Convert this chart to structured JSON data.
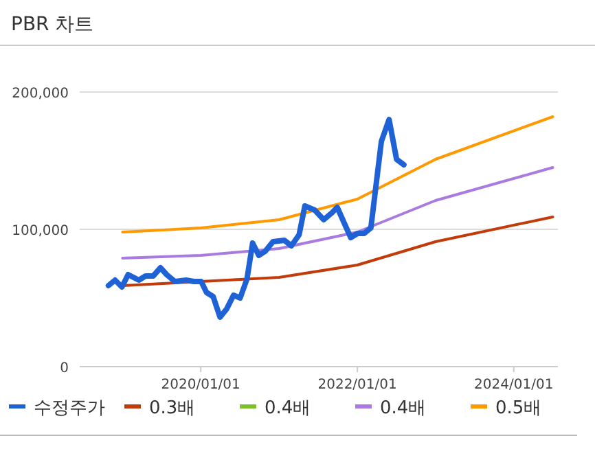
{
  "chart_data": {
    "type": "line",
    "title": "PBR 차트",
    "xlim": [
      "2018-06-15",
      "2024-07-25"
    ],
    "xticks": [
      {
        "value": "2020-01-01",
        "label": "2020/01/01"
      },
      {
        "value": "2022-01-01",
        "label": "2022/01/01"
      },
      {
        "value": "2024-01-01",
        "label": "2024/01/01"
      }
    ],
    "ylim": [
      0,
      200000
    ],
    "yticks": [
      {
        "value": 0,
        "label": "0"
      },
      {
        "value": 100000,
        "label": "100,000"
      },
      {
        "value": 200000,
        "label": "200,000"
      }
    ],
    "grid": "y",
    "legend": "bottom",
    "marker": "none",
    "line_style": "solid",
    "series": [
      {
        "name": "수정주가",
        "color": "#1f62d6",
        "x": [
          "2018-10-27",
          "2018-11-27",
          "2018-12-29",
          "2019-01-27",
          "2019-03-18",
          "2019-04-18",
          "2019-05-24",
          "2019-06-27",
          "2019-07-26",
          "2019-09-02",
          "2019-10-25",
          "2019-11-30",
          "2020-01-03",
          "2020-01-28",
          "2020-02-28",
          "2020-03-31",
          "2020-05-01",
          "2020-06-02",
          "2020-07-03",
          "2020-08-04",
          "2020-08-30",
          "2020-09-28",
          "2020-10-28",
          "2020-12-03",
          "2021-01-25",
          "2021-02-27",
          "2021-04-04",
          "2021-05-01",
          "2021-06-16",
          "2021-07-28",
          "2021-09-04",
          "2021-09-29",
          "2021-12-01",
          "2022-01-02",
          "2022-02-02",
          "2022-03-05",
          "2022-04-23",
          "2022-05-29",
          "2022-07-03",
          "2022-08-06"
        ],
        "values": [
          59000,
          63000,
          58000,
          67000,
          63000,
          66000,
          66000,
          72000,
          67000,
          62000,
          63000,
          62000,
          62000,
          54000,
          51000,
          36000,
          42000,
          52000,
          50000,
          64000,
          90000,
          81000,
          84000,
          91000,
          92000,
          88000,
          96000,
          117000,
          114000,
          107000,
          112000,
          116000,
          94000,
          97000,
          97000,
          101000,
          164000,
          180000,
          151000,
          147000
        ]
      },
      {
        "name": "0.3배",
        "color": "#c23b0a",
        "x": [
          "2019-01-01",
          "2020-01-01",
          "2021-01-01",
          "2022-01-01",
          "2023-01-01",
          "2024-07-01"
        ],
        "values": [
          59000,
          62000,
          65000,
          74000,
          91000,
          109000
        ]
      },
      {
        "name": "0.4배",
        "color": "#7cc12a"
      },
      {
        "name": "0.4배",
        "color": "#a97be0",
        "x": [
          "2019-01-01",
          "2020-01-01",
          "2021-01-01",
          "2022-01-01",
          "2023-01-01",
          "2024-07-01"
        ],
        "values": [
          79000,
          81000,
          86000,
          98000,
          121000,
          145000
        ]
      },
      {
        "name": "0.5배",
        "color": "#ff9900",
        "x": [
          "2019-01-01",
          "2020-01-01",
          "2021-01-01",
          "2022-01-01",
          "2023-01-01",
          "2024-07-01"
        ],
        "values": [
          98000,
          101000,
          107000,
          122000,
          151000,
          182000
        ]
      }
    ]
  }
}
